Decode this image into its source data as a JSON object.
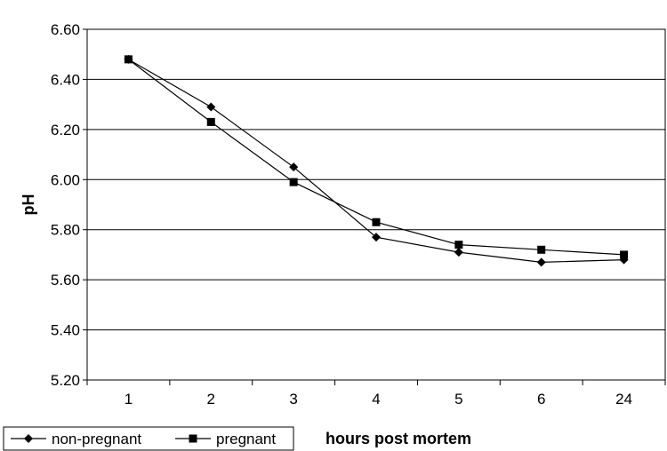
{
  "chart_data": {
    "type": "line",
    "categories": [
      "1",
      "2",
      "3",
      "4",
      "5",
      "6",
      "24"
    ],
    "series": [
      {
        "name": "non-pregnant",
        "marker": "diamond",
        "color": "#000000",
        "values": [
          6.48,
          6.29,
          6.05,
          5.77,
          5.71,
          5.67,
          5.68
        ]
      },
      {
        "name": "pregnant",
        "marker": "square",
        "color": "#000000",
        "values": [
          6.48,
          6.23,
          5.99,
          5.83,
          5.74,
          5.72,
          5.7
        ]
      }
    ],
    "xlabel": "hours post mortem",
    "ylabel": "pH",
    "ylim": [
      5.2,
      6.6
    ],
    "yticks": [
      "5.20",
      "5.40",
      "5.60",
      "5.80",
      "6.00",
      "6.20",
      "6.40",
      "6.60"
    ],
    "grid": true,
    "legend_position": "bottom-left"
  }
}
